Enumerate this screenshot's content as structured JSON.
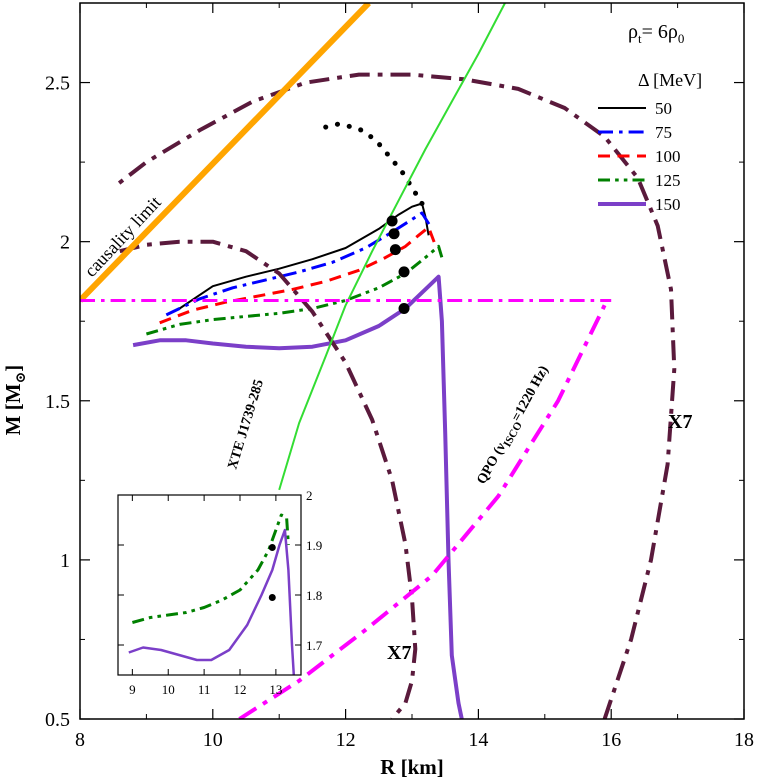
{
  "chart_data": {
    "type": "line",
    "title": "",
    "xlabel": "R [km]",
    "ylabel": "M [M",
    "ylabel_sub": "⊙",
    "ylabel_close": "]",
    "xlim": [
      8,
      18
    ],
    "ylim": [
      0.5,
      2.75
    ],
    "xticks": [
      8,
      10,
      12,
      14,
      16,
      18
    ],
    "yticks": [
      0.5,
      1,
      1.5,
      2,
      2.5
    ],
    "xtick_labels": [
      "8",
      "10",
      "12",
      "14",
      "16",
      "18"
    ],
    "ytick_labels": [
      "0.5",
      "1",
      "1.5",
      "2",
      "2.5"
    ],
    "legend": {
      "title": "Δ [MeV]",
      "position": "top-right",
      "entries": [
        "50",
        "75",
        "100",
        "125",
        "150"
      ]
    },
    "series": [
      {
        "name": "50",
        "color": "#000000",
        "dash": "solid",
        "width": 2,
        "x": [
          9.5,
          10.0,
          10.5,
          11.0,
          11.5,
          12.0,
          12.5,
          12.8,
          13.0,
          13.15,
          13.2,
          13.25
        ],
        "y": [
          1.79,
          1.86,
          1.89,
          1.915,
          1.945,
          1.98,
          2.04,
          2.085,
          2.11,
          2.12,
          2.08,
          2.02
        ]
      },
      {
        "name": "50 (dotted continuation)",
        "color": "#000000",
        "dash": "dotted",
        "width": 5,
        "x": [
          13.15,
          13.0,
          12.85,
          12.65,
          12.45,
          12.2,
          11.9,
          11.7
        ],
        "y": [
          2.12,
          2.17,
          2.22,
          2.27,
          2.32,
          2.355,
          2.37,
          2.36
        ]
      },
      {
        "name": "75",
        "color": "#0000ff",
        "dash": "dashdot",
        "width": 3,
        "x": [
          9.3,
          9.8,
          10.3,
          10.8,
          11.3,
          11.8,
          12.3,
          12.7,
          13.0,
          13.15,
          13.3
        ],
        "y": [
          1.77,
          1.82,
          1.855,
          1.88,
          1.905,
          1.935,
          1.98,
          2.03,
          2.07,
          2.09,
          2.04
        ]
      },
      {
        "name": "100",
        "color": "#ff0000",
        "dash": "dash",
        "width": 3,
        "x": [
          9.2,
          9.7,
          10.2,
          10.7,
          11.2,
          11.7,
          12.2,
          12.6,
          12.9,
          13.1,
          13.25,
          13.35
        ],
        "y": [
          1.745,
          1.785,
          1.81,
          1.83,
          1.85,
          1.875,
          1.91,
          1.95,
          1.985,
          2.02,
          2.045,
          1.99
        ]
      },
      {
        "name": "125",
        "color": "#008000",
        "dash": "dashdotdot",
        "width": 3,
        "x": [
          9.0,
          9.5,
          10.0,
          10.5,
          11.0,
          11.5,
          12.0,
          12.5,
          12.9,
          13.2,
          13.4,
          13.45
        ],
        "y": [
          1.71,
          1.74,
          1.755,
          1.765,
          1.775,
          1.79,
          1.815,
          1.855,
          1.9,
          1.95,
          1.985,
          1.95
        ]
      },
      {
        "name": "150",
        "color": "#7b3fc8",
        "dash": "solid",
        "width": 4,
        "x": [
          8.8,
          9.2,
          9.6,
          10.0,
          10.5,
          11.0,
          11.5,
          12.0,
          12.5,
          12.9,
          13.2,
          13.4,
          13.45,
          13.5,
          13.55,
          13.6,
          13.7,
          13.75
        ],
        "y": [
          1.675,
          1.69,
          1.69,
          1.68,
          1.67,
          1.665,
          1.67,
          1.69,
          1.735,
          1.79,
          1.85,
          1.89,
          1.75,
          1.4,
          1.0,
          0.7,
          0.55,
          0.5
        ]
      },
      {
        "name": "X7 outer contour",
        "color": "#5a1a3c",
        "dash": "dashdot",
        "width": 4,
        "x": [
          15.9,
          16.3,
          16.6,
          16.85,
          16.95,
          16.9,
          16.7,
          16.4,
          15.9,
          15.3,
          14.6,
          13.8,
          13.0,
          12.2,
          11.4,
          10.6,
          9.8,
          9.0,
          8.5
        ],
        "y": [
          0.5,
          0.75,
          1.0,
          1.3,
          1.6,
          1.85,
          2.05,
          2.2,
          2.33,
          2.42,
          2.48,
          2.51,
          2.525,
          2.525,
          2.5,
          2.44,
          2.35,
          2.25,
          2.17
        ]
      },
      {
        "name": "X7 inner contour",
        "color": "#5a1a3c",
        "dash": "dashdot",
        "width": 4,
        "x": [
          8.6,
          9.0,
          9.5,
          10.0,
          10.5,
          11.0,
          11.5,
          12.0,
          12.4,
          12.7,
          12.9,
          13.0,
          13.05,
          13.0,
          12.9,
          12.7
        ],
        "y": [
          1.97,
          1.99,
          2.0,
          2.0,
          1.97,
          1.9,
          1.78,
          1.62,
          1.44,
          1.25,
          1.05,
          0.88,
          0.72,
          0.62,
          0.55,
          0.5
        ]
      },
      {
        "name": "causality limit",
        "color": "#ffa500",
        "dash": "solid",
        "width": 6,
        "x": [
          8.0,
          12.35
        ],
        "y": [
          1.815,
          2.75
        ]
      },
      {
        "name": "XTE J1739-285",
        "color": "#33dd33",
        "dash": "solid",
        "width": 2,
        "x": [
          11.0,
          11.3,
          11.7,
          12.0,
          12.4,
          12.8,
          13.2,
          13.6,
          14.0,
          14.4
        ],
        "y": [
          1.22,
          1.43,
          1.64,
          1.8,
          1.97,
          2.13,
          2.29,
          2.44,
          2.59,
          2.75
        ]
      },
      {
        "name": "Horizontal line",
        "color": "#ff00ff",
        "dash": "dashdot",
        "width": 3,
        "x": [
          8.0,
          16.0
        ],
        "y": [
          1.815,
          1.815
        ]
      },
      {
        "name": "QPO",
        "color": "#ff00ff",
        "dash": "dashdot",
        "width": 4,
        "x": [
          10.4,
          11.3,
          12.3,
          13.3,
          14.3,
          15.2,
          15.9
        ],
        "y": [
          0.5,
          0.62,
          0.78,
          0.95,
          1.2,
          1.5,
          1.8
        ]
      }
    ],
    "markers": [
      {
        "x": 12.7,
        "y": 2.065
      },
      {
        "x": 12.73,
        "y": 2.025
      },
      {
        "x": 12.75,
        "y": 1.975
      },
      {
        "x": 12.88,
        "y": 1.905
      },
      {
        "x": 12.88,
        "y": 1.79
      }
    ],
    "inset": {
      "xlim": [
        8.6,
        13.7
      ],
      "ylim": [
        1.64,
        2.0
      ],
      "xticks": [
        9,
        10,
        11,
        12,
        13
      ],
      "yticks": [
        1.7,
        1.8,
        1.9,
        2
      ],
      "xtick_labels": [
        "9",
        "10",
        "11",
        "12",
        "13"
      ],
      "ytick_labels": [
        "1.7",
        "1.8",
        "1.9",
        "2"
      ],
      "series": [
        {
          "name": "125",
          "color": "#008000",
          "dash": "dashdotdot",
          "width": 3,
          "x": [
            9.0,
            9.5,
            10.0,
            10.5,
            11.0,
            11.5,
            12.0,
            12.5,
            12.8,
            13.0,
            13.15,
            13.3,
            13.35
          ],
          "y": [
            1.745,
            1.755,
            1.76,
            1.765,
            1.775,
            1.79,
            1.81,
            1.85,
            1.89,
            1.93,
            1.96,
            1.955,
            1.9
          ]
        },
        {
          "name": "150",
          "color": "#7b3fc8",
          "dash": "solid",
          "width": 2.5,
          "x": [
            8.9,
            9.3,
            9.8,
            10.3,
            10.8,
            11.2,
            11.7,
            12.2,
            12.6,
            12.9,
            13.1,
            13.25,
            13.35,
            13.45,
            13.5
          ],
          "y": [
            1.685,
            1.695,
            1.69,
            1.68,
            1.67,
            1.67,
            1.69,
            1.74,
            1.8,
            1.85,
            1.9,
            1.93,
            1.85,
            1.7,
            1.64
          ]
        }
      ],
      "markers": [
        {
          "x": 12.9,
          "y": 1.895
        },
        {
          "x": 12.9,
          "y": 1.795
        }
      ]
    }
  },
  "annotations": {
    "rho_main": "ρ",
    "rho_sub": "t",
    "rho_mid": "= 6ρ",
    "rho_end": "0",
    "causality": "causality limit",
    "xte": "XTE J1739-285",
    "qpo_pre": "QPO (ν",
    "qpo_sub": "ISCO",
    "qpo_post": "=1220 Hz)",
    "x7_right": "X7",
    "x7_bottom": "X7"
  }
}
